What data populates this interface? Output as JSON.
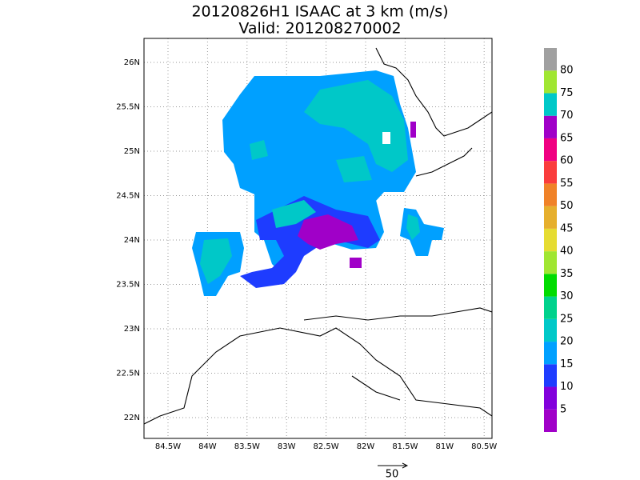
{
  "title": "20120826H1 ISAAC at 3 km (m/s)",
  "subtitle": "Valid: 201208270002",
  "lat_labels": [
    "26N",
    "25.5N",
    "25N",
    "24.5N",
    "24N",
    "23.5N",
    "23N",
    "22.5N",
    "22N"
  ],
  "lon_labels": [
    "84.5W",
    "84W",
    "83.5W",
    "83W",
    "82.5W",
    "82W",
    "81.5W",
    "81W",
    "80.5W"
  ],
  "colorbar": {
    "labels": [
      "5",
      "10",
      "15",
      "20",
      "25",
      "30",
      "35",
      "40",
      "45",
      "50",
      "55",
      "60",
      "65",
      "70",
      "75",
      "80"
    ],
    "colors": [
      "#a000c8",
      "#8200dc",
      "#1e3cff",
      "#00a0ff",
      "#00c8c8",
      "#00d28c",
      "#00dc00",
      "#a0e632",
      "#e6dc32",
      "#e6af2d",
      "#f08228",
      "#fa3c3c",
      "#f00082",
      "#a000c8",
      "#00c8c8",
      "#a0e632",
      "#a0a0a0"
    ]
  },
  "reference_vector": "50"
}
